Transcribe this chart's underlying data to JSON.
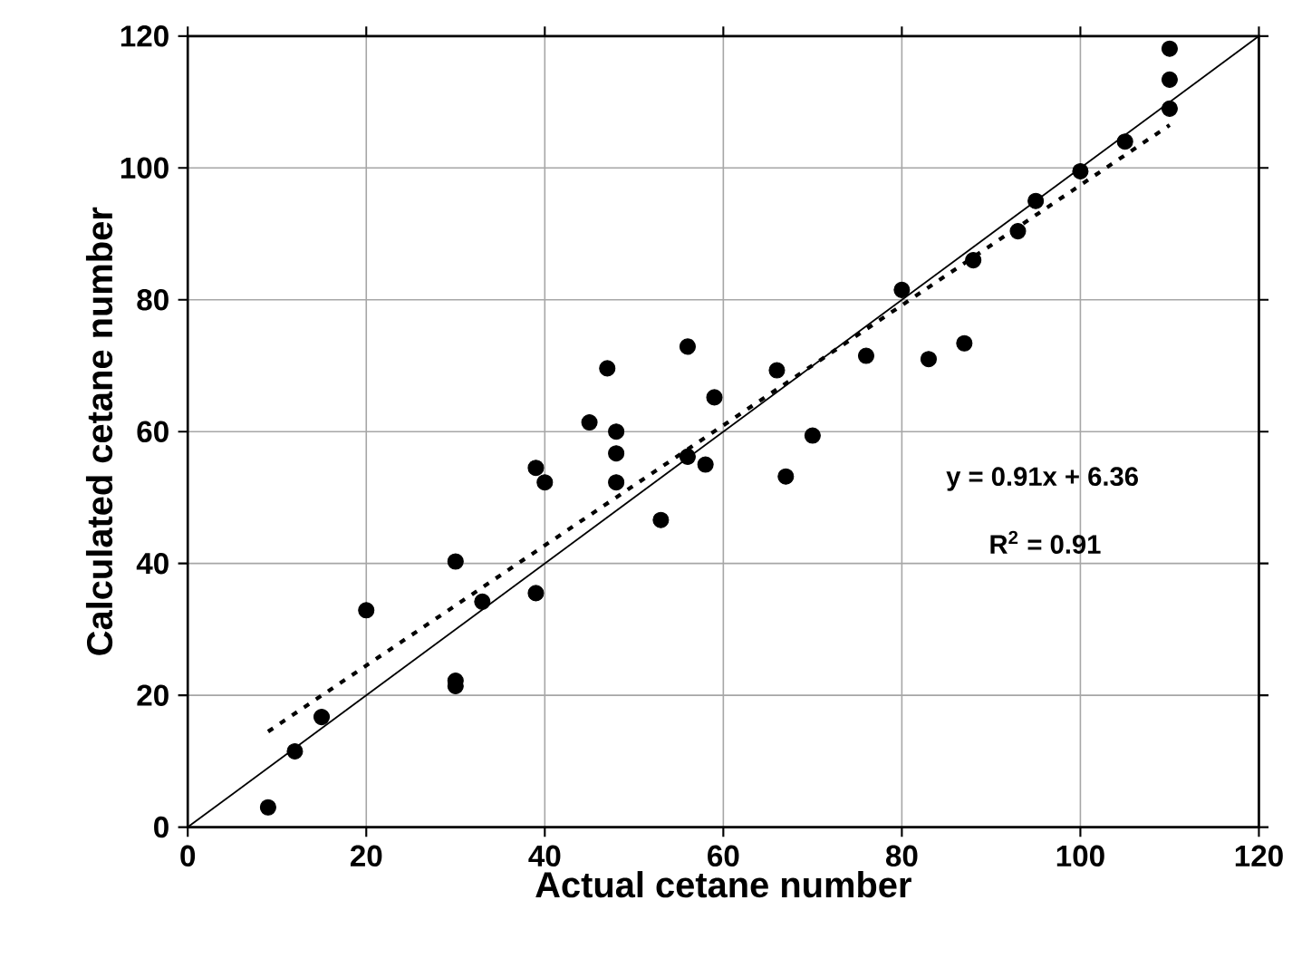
{
  "chart_data": {
    "type": "scatter",
    "xlabel": "Actual cetane number",
    "ylabel": "Calculated cetane number",
    "xlim": [
      0,
      120
    ],
    "ylim": [
      0,
      120
    ],
    "xticks": [
      0,
      20,
      40,
      60,
      80,
      100,
      120
    ],
    "yticks": [
      0,
      20,
      40,
      60,
      80,
      100,
      120
    ],
    "grid": true,
    "marker": "circle",
    "annotations": [
      "y = 0.91x + 6.36",
      "R$^{2}$ = 0.91"
    ],
    "series": [
      {
        "color": "#000000",
        "x": [
          9,
          12,
          15,
          20,
          30,
          30,
          30,
          33,
          39,
          39,
          40,
          45,
          47,
          48,
          48,
          48,
          53,
          56,
          56,
          58,
          59,
          66,
          67,
          70,
          76,
          80,
          83,
          87,
          88,
          93,
          95,
          100,
          105,
          110,
          110,
          110
        ],
        "values": [
          3,
          11.5,
          16.7,
          32.9,
          40.3,
          22.2,
          21.4,
          34.2,
          35.5,
          54.5,
          52.3,
          61.4,
          69.6,
          60,
          56.7,
          52.3,
          46.6,
          72.9,
          56.2,
          55,
          65.2,
          69.3,
          53.2,
          59.4,
          71.5,
          81.5,
          71,
          73.4,
          86,
          90.4,
          95,
          99.5,
          104,
          109,
          113.4,
          118.1
        ]
      },
      {
        "type": "line",
        "color": "#000000",
        "marker": "none",
        "line_style": "dotted",
        "x": [
          9,
          110
        ],
        "values": [
          14.5,
          106.5
        ]
      },
      {
        "type": "line",
        "color": "#000000",
        "marker": "none",
        "line_style": "solid",
        "x": [
          0,
          120
        ],
        "values": [
          0,
          120
        ]
      }
    ]
  }
}
